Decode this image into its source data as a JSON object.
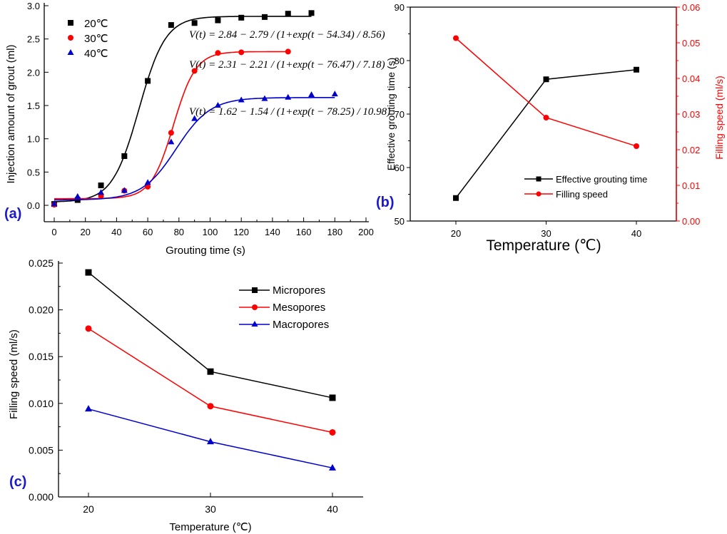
{
  "chart_data": [
    {
      "panel_label": "(a)",
      "type": "scatter",
      "xlabel": "Grouting time (s)",
      "ylabel": "Injection amount of grout (ml)",
      "xlim": [
        0,
        200
      ],
      "ylim": [
        0,
        3.0
      ],
      "xticks": [
        "0",
        "20",
        "40",
        "60",
        "80",
        "100",
        "120",
        "140",
        "160",
        "180",
        "200"
      ],
      "yticks": [
        "0.0",
        "0.5",
        "1.0",
        "1.5",
        "2.0",
        "2.5",
        "3.0"
      ],
      "grid": false,
      "legend": "top-left",
      "series": [
        {
          "name": "20℃",
          "color": "#000000",
          "marker": "square",
          "x": [
            0,
            15,
            30,
            45,
            60,
            75,
            90,
            105,
            120,
            135,
            150,
            165
          ],
          "y": [
            0.02,
            0.08,
            0.3,
            0.74,
            1.87,
            2.71,
            2.74,
            2.78,
            2.82,
            2.83,
            2.88,
            2.89
          ],
          "fit": {
            "A": 2.84,
            "B": 2.79,
            "t0": 54.34,
            "w": 8.56
          },
          "equation": "V(t) = 2.84 − 2.79 / (1+exp(t − 54.34) / 8.56)"
        },
        {
          "name": "30℃",
          "color": "#ff0000",
          "marker": "circle",
          "x": [
            0,
            30,
            45,
            60,
            75,
            90,
            105,
            120,
            150
          ],
          "y": [
            0.01,
            0.14,
            0.22,
            0.28,
            1.09,
            2.02,
            2.29,
            2.3,
            2.31
          ],
          "fit": {
            "A": 2.31,
            "B": 2.21,
            "t0": 76.47,
            "w": 7.18
          },
          "equation": "V(t) = 2.31 − 2.21 / (1+exp(t − 76.47) / 7.18)"
        },
        {
          "name": "40℃",
          "color": "#0000cc",
          "marker": "triangle",
          "x": [
            0,
            15,
            30,
            45,
            60,
            75,
            90,
            105,
            120,
            135,
            150,
            165,
            180
          ],
          "y": [
            0.02,
            0.13,
            0.19,
            0.22,
            0.34,
            0.95,
            1.3,
            1.5,
            1.58,
            1.6,
            1.62,
            1.66,
            1.67
          ],
          "fit": {
            "A": 1.62,
            "B": 1.54,
            "t0": 78.25,
            "w": 10.98
          },
          "equation": "V(t) = 1.62 − 1.54 / (1+exp(t − 78.25) / 10.98)"
        }
      ]
    },
    {
      "panel_label": "(b)",
      "type": "line",
      "xlabel": "Temperature (℃)",
      "ylabel": "Effective grouting time (s)",
      "ylabel_right": "Filling speed (ml/s)",
      "categories": [
        20,
        30,
        40
      ],
      "xticks": [
        "20",
        "30",
        "40"
      ],
      "ylim": [
        50,
        90
      ],
      "yticks": [
        "50",
        "60",
        "70",
        "80",
        "90"
      ],
      "ylim_right": [
        0,
        0.06
      ],
      "yticks_right": [
        "0.00",
        "0.01",
        "0.02",
        "0.03",
        "0.04",
        "0.05",
        "0.06"
      ],
      "grid": false,
      "legend": "bottom-right",
      "series": [
        {
          "name": "Effective grouting time",
          "color": "#000000",
          "marker": "square",
          "axis": "left",
          "values": [
            54.3,
            76.5,
            78.3
          ]
        },
        {
          "name": "Filling speed",
          "color": "#ff0000",
          "marker": "circle",
          "axis": "right",
          "values": [
            0.0513,
            0.029,
            0.021
          ]
        }
      ]
    },
    {
      "panel_label": "(c)",
      "type": "line",
      "xlabel": "Temperature (℃)",
      "ylabel": "Filling speed (ml/s)",
      "categories": [
        20,
        30,
        40
      ],
      "xticks": [
        "20",
        "30",
        "40"
      ],
      "ylim": [
        0,
        0.025
      ],
      "yticks": [
        "0.000",
        "0.005",
        "0.010",
        "0.015",
        "0.020",
        "0.025"
      ],
      "grid": false,
      "legend": "top-right",
      "series": [
        {
          "name": "Micropores",
          "color": "#000000",
          "marker": "square",
          "values": [
            0.024,
            0.0134,
            0.0106
          ]
        },
        {
          "name": "Mesopores",
          "color": "#ff0000",
          "marker": "circle",
          "values": [
            0.018,
            0.0097,
            0.0069
          ]
        },
        {
          "name": "Macropores",
          "color": "#0000cc",
          "marker": "triangle",
          "values": [
            0.0094,
            0.0059,
            0.0031
          ]
        }
      ]
    }
  ],
  "colors": {
    "panel_label": "#1a1acc",
    "right_axis": "#ff0000"
  }
}
